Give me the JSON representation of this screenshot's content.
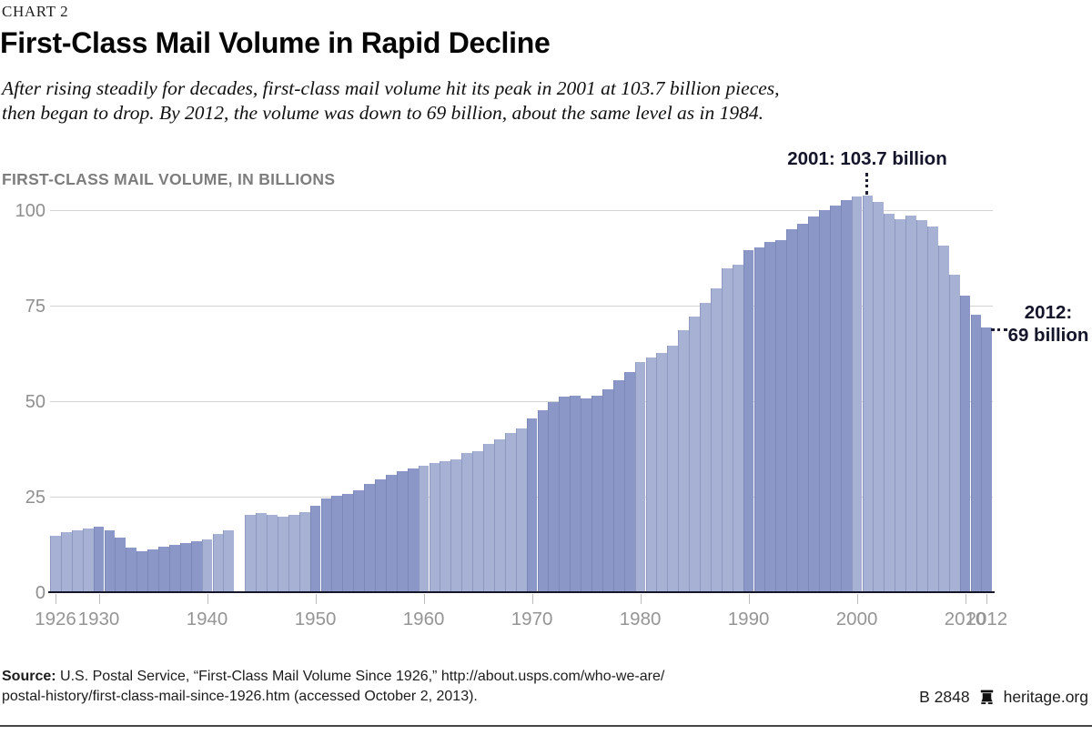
{
  "header": {
    "kicker": "CHART 2",
    "title": "First-Class Mail Volume in Rapid Decline",
    "subtitle_line1": "After rising steadily for decades, first-class mail volume hit its peak in 2001 at 103.7 billion pieces,",
    "subtitle_line2": "then began to drop. By 2012, the volume was down to 69 billion, about the same level as in 1984."
  },
  "chart": {
    "heading": "FIRST-CLASS MAIL VOLUME, IN BILLIONS",
    "x_axis_tick_years": [
      1926,
      1930,
      1940,
      1950,
      1960,
      1970,
      1980,
      1990,
      2000,
      2010,
      2012
    ],
    "annotations": {
      "peak_label": "2001: 103.7 billion",
      "end_label_line1": "2012:",
      "end_label_line2": "69 billion"
    },
    "colors": {
      "bar_light": "#a6b1d4",
      "bar_dark": "#8b97c6",
      "gridline": "#d4d4d4",
      "axis": "#16162b",
      "annotation_text": "#14142a"
    }
  },
  "chart_data": {
    "type": "bar",
    "title": "FIRST-CLASS MAIL VOLUME, IN BILLIONS",
    "xlabel": "",
    "ylabel": "First-class mail volume, in billions of pieces",
    "ylim": [
      0,
      105
    ],
    "yticks": [
      0,
      25,
      50,
      75,
      100
    ],
    "grid": "horizontal",
    "legend": "none",
    "x_start": 1926,
    "x_end": 2012,
    "missing_years": [
      1943
    ],
    "decade_shading": "bars alternate light/dark fill by decade",
    "categories": [
      1926,
      1927,
      1928,
      1929,
      1930,
      1931,
      1932,
      1933,
      1934,
      1935,
      1936,
      1937,
      1938,
      1939,
      1940,
      1941,
      1942,
      1943,
      1944,
      1945,
      1946,
      1947,
      1948,
      1949,
      1950,
      1951,
      1952,
      1953,
      1954,
      1955,
      1956,
      1957,
      1958,
      1959,
      1960,
      1961,
      1962,
      1963,
      1964,
      1965,
      1966,
      1967,
      1968,
      1969,
      1970,
      1971,
      1972,
      1973,
      1974,
      1975,
      1976,
      1977,
      1978,
      1979,
      1980,
      1981,
      1982,
      1983,
      1984,
      1985,
      1986,
      1987,
      1988,
      1989,
      1990,
      1991,
      1992,
      1993,
      1994,
      1995,
      1996,
      1997,
      1998,
      1999,
      2000,
      2001,
      2002,
      2003,
      2004,
      2005,
      2006,
      2007,
      2008,
      2009,
      2010,
      2011,
      2012
    ],
    "values": [
      14.6,
      15.5,
      16.0,
      16.5,
      16.8,
      16.0,
      14.0,
      11.4,
      10.6,
      11.0,
      11.6,
      12.1,
      12.6,
      13.2,
      13.7,
      15.0,
      16.0,
      null,
      20.1,
      20.6,
      20.0,
      19.6,
      20.1,
      20.8,
      22.4,
      24.3,
      24.9,
      25.4,
      26.5,
      28.0,
      29.4,
      30.4,
      31.4,
      32.1,
      32.9,
      33.6,
      34.0,
      34.5,
      36.2,
      36.6,
      38.6,
      39.8,
      41.4,
      42.7,
      45.3,
      47.5,
      49.5,
      50.9,
      51.3,
      50.5,
      51.2,
      52.8,
      55.3,
      57.4,
      59.9,
      61.2,
      62.5,
      64.3,
      68.4,
      71.9,
      75.6,
      79.3,
      84.5,
      85.6,
      89.3,
      90.1,
      91.4,
      91.9,
      94.7,
      96.3,
      98.2,
      99.7,
      100.9,
      102.4,
      103.4,
      103.7,
      102.0,
      98.8,
      97.3,
      98.3,
      97.2,
      95.5,
      90.5,
      82.8,
      77.3,
      72.3,
      69.0
    ],
    "annotated_points": [
      {
        "year": 2001,
        "value": 103.7,
        "label": "2001: 103.7 billion"
      },
      {
        "year": 2012,
        "value": 69,
        "label": "2012: 69 billion"
      }
    ]
  },
  "footer": {
    "source_prefix": "Source:",
    "source_line1": " U.S. Postal Service, “First-Class Mail Volume Since 1926,” http://about.usps.com/who-we-are/",
    "source_line2": "postal-history/first-class-mail-since-1926.htm (accessed October 2, 2013).",
    "doc_id": "B 2848",
    "site": "heritage.org"
  }
}
